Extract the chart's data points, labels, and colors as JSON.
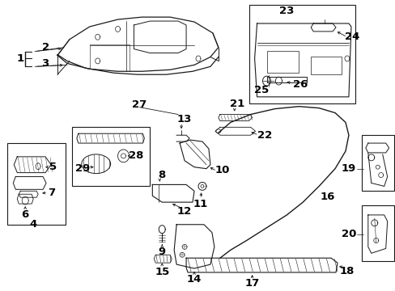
{
  "bg_color": "#ffffff",
  "fig_width": 4.89,
  "fig_height": 3.6,
  "dpi": 100,
  "lc": "#1a1a1a",
  "tc": "#000000",
  "fs": 7.5,
  "fs_big": 9.5
}
